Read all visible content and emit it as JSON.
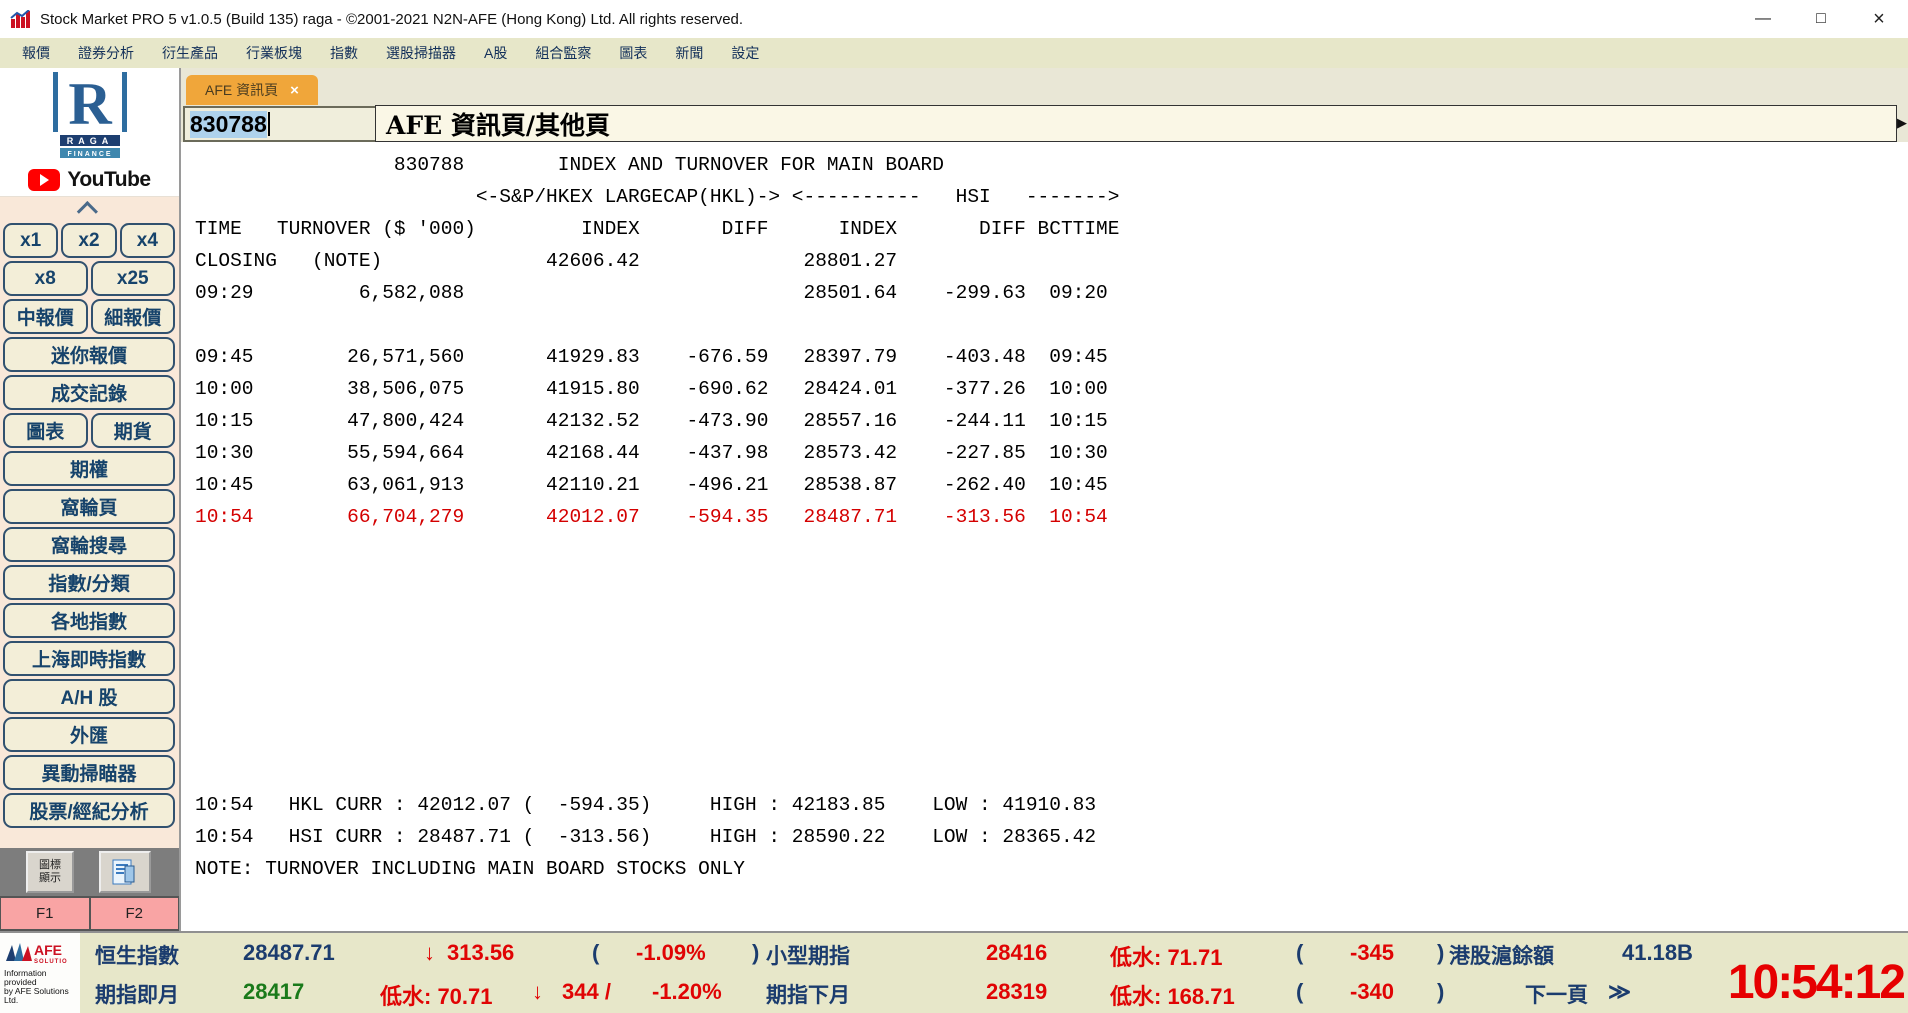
{
  "window": {
    "title": "Stock Market PRO 5 v1.0.5 (Build 135) raga - ©2001-2021 N2N-AFE (Hong Kong) Ltd. All rights reserved.",
    "minimize_glyph": "—",
    "maximize_glyph": "□",
    "close_glyph": "×"
  },
  "menu": {
    "items": [
      "報價",
      "證券分析",
      "衍生產品",
      "行業板塊",
      "指數",
      "選股掃描器",
      "A股",
      "組合監察",
      "圖表",
      "新聞",
      "設定"
    ]
  },
  "sidebar": {
    "logo_line1": "RAGA",
    "logo_line2": "FINANCE",
    "youtube_label": "YouTube",
    "rows": [
      [
        "x1",
        "x2",
        "x4"
      ],
      [
        "x8",
        "x25"
      ],
      [
        "中報價",
        "細報價"
      ],
      [
        "迷你報價"
      ],
      [
        "成交記錄"
      ],
      [
        "圖表",
        "期貨"
      ],
      [
        "期權"
      ],
      [
        "窩輪頁"
      ],
      [
        "窩輪搜尋"
      ],
      [
        "指數/分類"
      ],
      [
        "各地指數"
      ],
      [
        "上海即時指數"
      ],
      [
        "A/H 股"
      ],
      [
        "外匯"
      ],
      [
        "異動掃瞄器"
      ],
      [
        "股票/經紀分析"
      ]
    ],
    "icon_display_line1": "圖標",
    "icon_display_line2": "顯示",
    "f1": "F1",
    "f2": "F2"
  },
  "tabs": {
    "active_label": "AFE 資訊頁",
    "close_glyph": "×"
  },
  "toolbar": {
    "code_value": "830788",
    "page_title": "AFE 資訊頁/其他頁",
    "right_arrow_glyph": "▶"
  },
  "terminal": {
    "lines": [
      {
        "text": "                 830788        INDEX AND TURNOVER FOR MAIN BOARD"
      },
      {
        "text": "                        <-S&P/HKEX LARGECAP(HKL)-> <----------   HSI   ------->"
      },
      {
        "text": "TIME   TURNOVER ($ '000)         INDEX       DIFF      INDEX       DIFF BCTTIME"
      },
      {
        "text": "CLOSING   (NOTE)              42606.42              28801.27"
      },
      {
        "text": "09:29         6,582,088                             28501.64    -299.63  09:20"
      },
      {
        "text": ""
      },
      {
        "text": "09:45        26,571,560       41929.83    -676.59   28397.79    -403.48  09:45"
      },
      {
        "text": "10:00        38,506,075       41915.80    -690.62   28424.01    -377.26  10:00"
      },
      {
        "text": "10:15        47,800,424       42132.52    -473.90   28557.16    -244.11  10:15"
      },
      {
        "text": "10:30        55,594,664       42168.44    -437.98   28573.42    -227.85  10:30"
      },
      {
        "text": "10:45        63,061,913       42110.21    -496.21   28538.87    -262.40  10:45"
      },
      {
        "text": "10:54        66,704,279       42012.07    -594.35   28487.71    -313.56  10:54",
        "red": true
      },
      {
        "text": ""
      },
      {
        "text": ""
      },
      {
        "text": ""
      },
      {
        "text": ""
      },
      {
        "text": ""
      },
      {
        "text": ""
      },
      {
        "text": ""
      },
      {
        "text": ""
      },
      {
        "text": "10:54   HKL CURR : 42012.07 (  -594.35)     HIGH : 42183.85    LOW : 41910.83"
      },
      {
        "text": "10:54   HSI CURR : 28487.71 (  -313.56)     HIGH : 28590.22    LOW : 28365.42"
      },
      {
        "text": "NOTE: TURNOVER INCLUDING MAIN BOARD STOCKS ONLY"
      }
    ]
  },
  "bottom": {
    "glyphs": {
      "open": "(",
      "close": ")",
      "down": "↓",
      "pager": "≫"
    },
    "row1": {
      "hsi_label": "恒生指數",
      "hsi_value": "28487.71",
      "hsi_change": "313.56",
      "hsi_pct": "-1.09%",
      "mini_label": "小型期指",
      "mini_value": "28416",
      "mini_low": "低水: 71.71",
      "mini_diff": "-345",
      "ggt_label": "港股滬餘額",
      "ggt_value": "41.18B"
    },
    "row2": {
      "fut_label": "期指即月",
      "fut_value": "28417",
      "fut_low": "低水: 70.71",
      "fut_change": "344 /",
      "fut_pct": "-1.20%",
      "next_label": "期指下月",
      "next_value": "28319",
      "next_low": "低水: 168.71",
      "next_diff": "-340",
      "next_page": "下一頁"
    },
    "clock": "10:54:12",
    "afe_name": "AFE",
    "afe_sub": "SOLUTIONS",
    "afe_caption_1": "Information provided",
    "afe_caption_2": "by AFE Solutions Ltd."
  },
  "colors": {
    "tab_orange": "#f0a63a",
    "bar_beige": "#e7e7c9",
    "navy": "#1b3c6e",
    "alert_red": "#e00404",
    "green": "#1a7a1a",
    "terminal_red": "#d40000",
    "sidebar_pink": "#f9e8d9",
    "clock_red": "#e60000"
  }
}
